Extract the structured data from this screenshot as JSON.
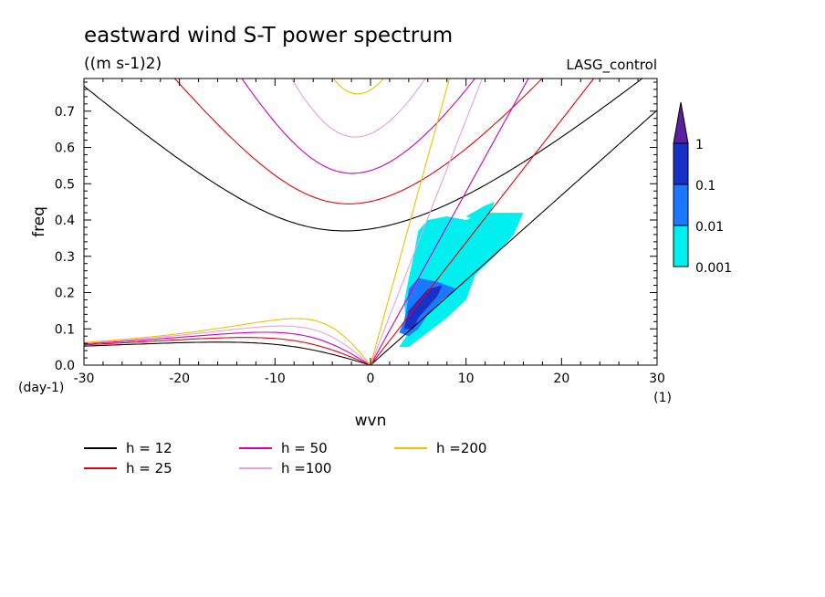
{
  "chart_data": {
    "type": "line",
    "title": "eastward wind S-T power spectrum",
    "subtitle": "((m s-1)2)",
    "run_label": "LASG_control",
    "xlabel": "wvn",
    "ylabel": "freq",
    "x_unit": "(1)",
    "y_unit": "(day-1)",
    "xlim": [
      -30,
      30
    ],
    "ylim": [
      0,
      0.79
    ],
    "x_ticks": [
      -30,
      -20,
      -10,
      0,
      10,
      20,
      30
    ],
    "x_tick_labels": [
      "-30",
      "-20",
      "-10",
      "0",
      "10",
      "20",
      "30"
    ],
    "y_ticks": [
      0,
      0.1,
      0.2,
      0.3,
      0.4,
      0.5,
      0.6,
      0.7
    ],
    "y_tick_labels": [
      "0.0",
      "0.1",
      "0.2",
      "0.3",
      "0.4",
      "0.5",
      "0.6",
      "0.7"
    ],
    "series": [
      {
        "name": "h = 12",
        "label": "h = 12",
        "h": 12,
        "color": "#000000"
      },
      {
        "name": "h = 25",
        "label": "h = 25",
        "h": 25,
        "color": "#e8000b"
      },
      {
        "name": "h = 50",
        "label": "h = 50",
        "h": 50,
        "color": "#d000c0"
      },
      {
        "name": "h =100",
        "label": "h =100",
        "h": 100,
        "color": "#e8a0e0"
      },
      {
        "name": "h =200",
        "label": "h =200",
        "h": 200,
        "color": "#f0c000"
      }
    ],
    "colorbar": {
      "levels": [
        "0.001",
        "0.01",
        "0.1",
        "1"
      ],
      "colors": [
        "#00f0f0",
        "#1e78ff",
        "#1630c8",
        "#5a1ea0"
      ]
    },
    "shaded_regions": [
      {
        "level": "0.001",
        "color": "#00f0f0",
        "points": [
          [
            3,
            0.05
          ],
          [
            4,
            0.09
          ],
          [
            3.5,
            0.17
          ],
          [
            4,
            0.24
          ],
          [
            4.5,
            0.3
          ],
          [
            5,
            0.37
          ],
          [
            6,
            0.4
          ],
          [
            8,
            0.41
          ],
          [
            10,
            0.4
          ],
          [
            12,
            0.42
          ],
          [
            14,
            0.42
          ],
          [
            16,
            0.42
          ],
          [
            15,
            0.36
          ],
          [
            13,
            0.3
          ],
          [
            11,
            0.25
          ],
          [
            10,
            0.18
          ],
          [
            8,
            0.13
          ],
          [
            6,
            0.09
          ],
          [
            4,
            0.05
          ]
        ]
      },
      {
        "level": "0.001",
        "color": "#00f0f0",
        "points": [
          [
            10,
            0.41
          ],
          [
            12,
            0.44
          ],
          [
            13,
            0.45
          ],
          [
            12.5,
            0.42
          ],
          [
            11,
            0.4
          ]
        ]
      },
      {
        "level": "0.01",
        "color": "#1e78ff",
        "points": [
          [
            3,
            0.09
          ],
          [
            3.5,
            0.12
          ],
          [
            3.8,
            0.16
          ],
          [
            4,
            0.21
          ],
          [
            5,
            0.24
          ],
          [
            7,
            0.23
          ],
          [
            9,
            0.21
          ],
          [
            7.5,
            0.18
          ],
          [
            6,
            0.14
          ],
          [
            5,
            0.1
          ],
          [
            4,
            0.08
          ]
        ]
      },
      {
        "level": "0.1",
        "color": "#1630c8",
        "points": [
          [
            3.5,
            0.1
          ],
          [
            4,
            0.15
          ],
          [
            5,
            0.18
          ],
          [
            6,
            0.21
          ],
          [
            7.5,
            0.22
          ],
          [
            7,
            0.19
          ],
          [
            6,
            0.16
          ],
          [
            5,
            0.13
          ],
          [
            4.5,
            0.1
          ]
        ]
      }
    ]
  }
}
